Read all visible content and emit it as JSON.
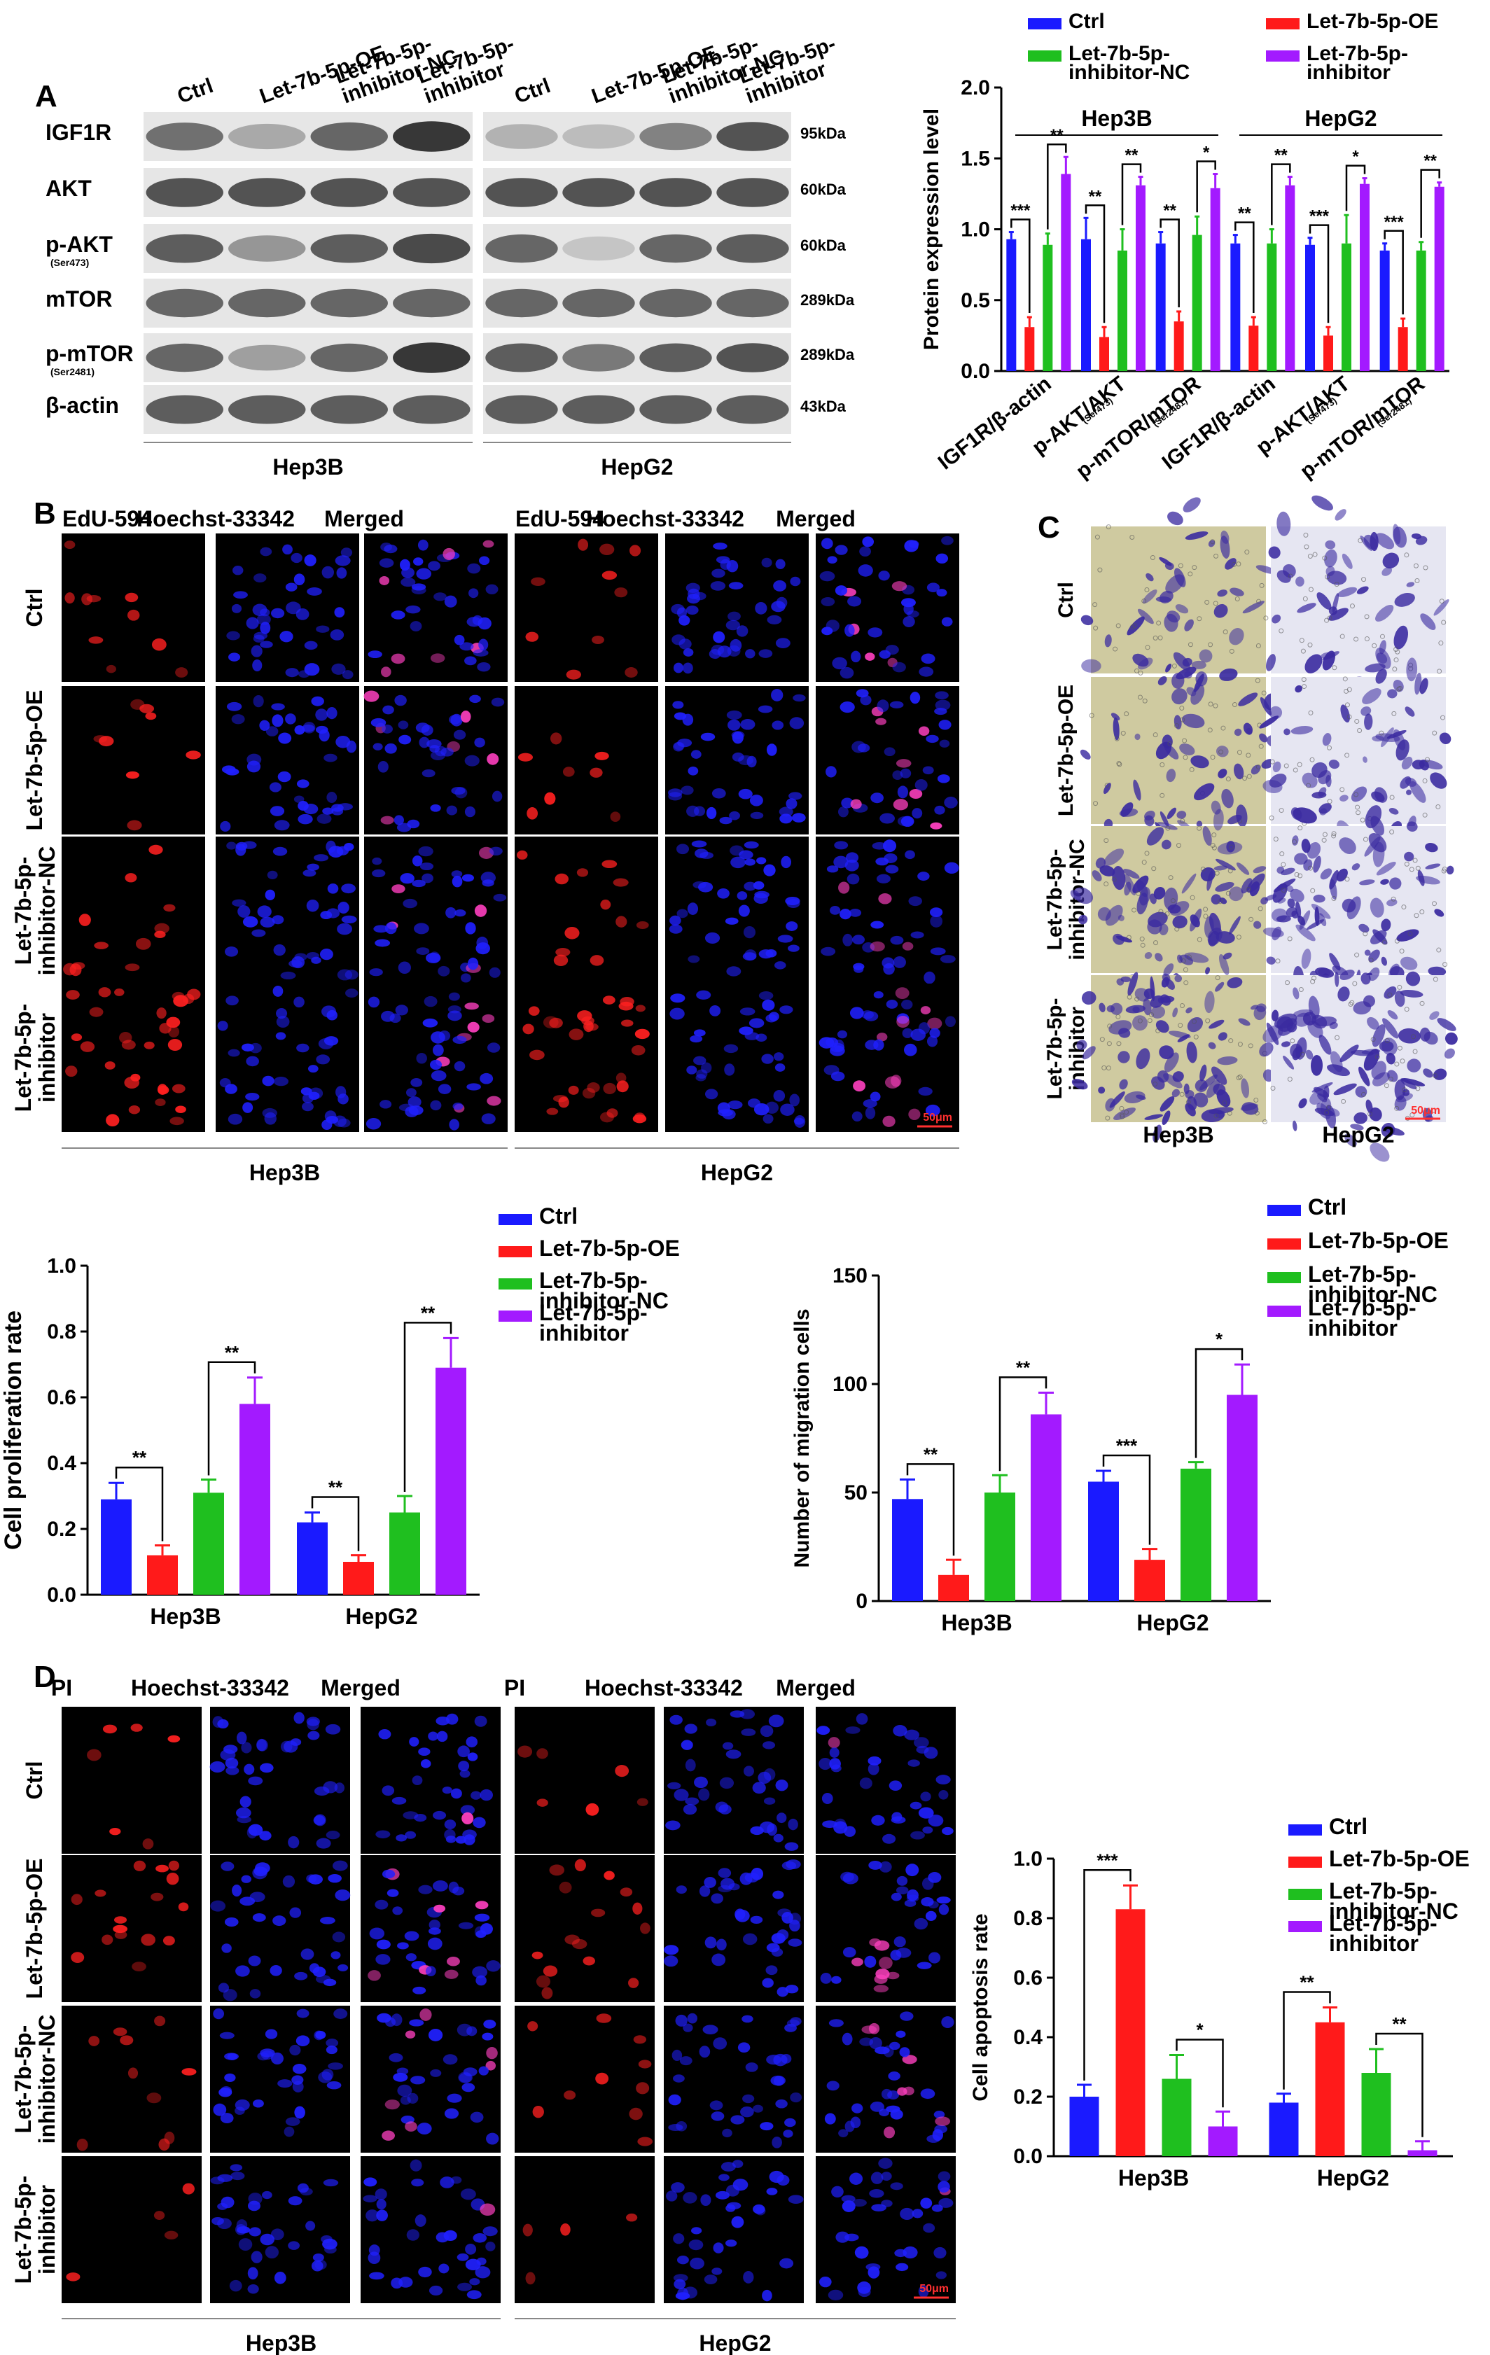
{
  "colors": {
    "Ctrl": "#1a1aff",
    "Let-7b-5p-OE": "#ff1a1a",
    "Let-7b-5p-inhibitor-NC": "#1fbf1f",
    "Let-7b-5p-inhibitor": "#a31aff",
    "fluor_red": "#ff2020",
    "fluor_blue": "#2020ff",
    "fluor_pink": "#ff40c0",
    "transwell_bg_hep3b": "#cfcaa0",
    "transwell_bg_hepg2": "#e6e6f2",
    "transwell_stain": "#3a2aa0"
  },
  "panel_letters": {
    "A": "A",
    "B": "B",
    "C": "C",
    "D": "D"
  },
  "western": {
    "lanes": [
      "Ctrl",
      "Let-7b-5p-OE",
      "Let-7b-5p-inhibitor-NC",
      "Let-7b-5p-inhibitor"
    ],
    "rows": [
      {
        "label": "IGF1R",
        "sub": "",
        "kda": "95kDa",
        "h3b": [
          0.65,
          0.35,
          0.7,
          0.95
        ],
        "hg2": [
          0.3,
          0.25,
          0.55,
          0.8
        ]
      },
      {
        "label": "AKT",
        "sub": "",
        "kda": "60kDa",
        "h3b": [
          0.8,
          0.8,
          0.8,
          0.8
        ],
        "hg2": [
          0.8,
          0.8,
          0.8,
          0.8
        ]
      },
      {
        "label": "p-AKT",
        "sub": "(Ser473)",
        "kda": "60kDa",
        "h3b": [
          0.75,
          0.45,
          0.75,
          0.85
        ],
        "hg2": [
          0.7,
          0.2,
          0.7,
          0.75
        ]
      },
      {
        "label": "mTOR",
        "sub": "",
        "kda": "289kDa",
        "h3b": [
          0.7,
          0.7,
          0.7,
          0.7
        ],
        "hg2": [
          0.7,
          0.7,
          0.7,
          0.7
        ]
      },
      {
        "label": "p-mTOR",
        "sub": "(Ser2481)",
        "kda": "289kDa",
        "h3b": [
          0.7,
          0.4,
          0.7,
          0.95
        ],
        "hg2": [
          0.75,
          0.6,
          0.75,
          0.8
        ]
      },
      {
        "label": "β-actin",
        "sub": "",
        "kda": "43kDa",
        "h3b": [
          0.75,
          0.75,
          0.75,
          0.75
        ],
        "hg2": [
          0.75,
          0.75,
          0.75,
          0.75
        ]
      }
    ],
    "cell_lines": [
      "Hep3B",
      "HepG2"
    ]
  },
  "microscopy": {
    "edu_headers": [
      "EdU-594",
      "Hoechst-33342",
      "Merged"
    ],
    "pi_headers": [
      "PI",
      "Hoechst-33342",
      "Merged"
    ],
    "row_labels": [
      "Ctrl",
      "Let-7b-5p-OE",
      "Let-7b-5p-inhibitor-NC",
      "Let-7b-5p-inhibitor"
    ],
    "cell_lines": [
      "Hep3B",
      "HepG2"
    ],
    "scale_bar": "50μm",
    "transwell_cell_lines": [
      "Hep3B",
      "HepG2"
    ]
  },
  "chart_data": [
    {
      "id": "protein",
      "type": "bar",
      "ylabel": "Protein expression level",
      "ylim": [
        0,
        2.0
      ],
      "yticks": [
        "0.0",
        "0.5",
        "1.0",
        "1.5",
        "2.0"
      ],
      "group_headers": [
        "Hep3B",
        "HepG2"
      ],
      "categories": [
        "IGF1R/β-actin",
        "p-AKT/AKT",
        "p-mTOR/mTOR",
        "IGF1R/β-actin",
        "p-AKT/AKT",
        "p-mTOR/mTOR"
      ],
      "category_subs": [
        "",
        "(Ser473)",
        "(Ser2481)",
        "",
        "(Ser473)",
        "(Ser2481)"
      ],
      "series": [
        {
          "name": "Ctrl",
          "values": [
            0.93,
            0.93,
            0.9,
            0.9,
            0.89,
            0.85
          ],
          "errors": [
            0.05,
            0.15,
            0.08,
            0.06,
            0.05,
            0.05
          ]
        },
        {
          "name": "Let-7b-5p-OE",
          "values": [
            0.31,
            0.24,
            0.35,
            0.32,
            0.25,
            0.31
          ],
          "errors": [
            0.07,
            0.07,
            0.07,
            0.06,
            0.06,
            0.06
          ]
        },
        {
          "name": "Let-7b-5p-inhibitor-NC",
          "values": [
            0.89,
            0.85,
            0.96,
            0.9,
            0.9,
            0.85
          ],
          "errors": [
            0.08,
            0.15,
            0.13,
            0.1,
            0.2,
            0.06
          ]
        },
        {
          "name": "Let-7b-5p-inhibitor",
          "values": [
            1.39,
            1.31,
            1.29,
            1.31,
            1.32,
            1.3
          ],
          "errors": [
            0.12,
            0.06,
            0.1,
            0.06,
            0.04,
            0.03
          ]
        }
      ],
      "significance": [
        {
          "cat": 0,
          "a": 0,
          "b": 1,
          "label": "***"
        },
        {
          "cat": 0,
          "a": 2,
          "b": 3,
          "label": "**"
        },
        {
          "cat": 1,
          "a": 0,
          "b": 1,
          "label": "**"
        },
        {
          "cat": 1,
          "a": 2,
          "b": 3,
          "label": "**"
        },
        {
          "cat": 2,
          "a": 0,
          "b": 1,
          "label": "**"
        },
        {
          "cat": 2,
          "a": 2,
          "b": 3,
          "label": "*"
        },
        {
          "cat": 3,
          "a": 0,
          "b": 1,
          "label": "**"
        },
        {
          "cat": 3,
          "a": 2,
          "b": 3,
          "label": "**"
        },
        {
          "cat": 4,
          "a": 0,
          "b": 1,
          "label": "***"
        },
        {
          "cat": 4,
          "a": 2,
          "b": 3,
          "label": "*"
        },
        {
          "cat": 5,
          "a": 0,
          "b": 1,
          "label": "***"
        },
        {
          "cat": 5,
          "a": 2,
          "b": 3,
          "label": "**"
        }
      ],
      "legend": [
        "Ctrl",
        "Let-7b-5p-OE",
        "Let-7b-5p-inhibitor-NC",
        "Let-7b-5p-inhibitor"
      ],
      "legend_placement": "top"
    },
    {
      "id": "proliferation",
      "type": "bar",
      "ylabel": "Cell proliferation rate",
      "ylim": [
        0,
        1.0
      ],
      "yticks": [
        "0.0",
        "0.2",
        "0.4",
        "0.6",
        "0.8",
        "1.0"
      ],
      "categories": [
        "Hep3B",
        "HepG2"
      ],
      "series": [
        {
          "name": "Ctrl",
          "values": [
            0.29,
            0.22
          ],
          "errors": [
            0.05,
            0.03
          ]
        },
        {
          "name": "Let-7b-5p-OE",
          "values": [
            0.12,
            0.1
          ],
          "errors": [
            0.03,
            0.02
          ]
        },
        {
          "name": "Let-7b-5p-inhibitor-NC",
          "values": [
            0.31,
            0.25
          ],
          "errors": [
            0.04,
            0.05
          ]
        },
        {
          "name": "Let-7b-5p-inhibitor",
          "values": [
            0.58,
            0.69
          ],
          "errors": [
            0.08,
            0.09
          ]
        }
      ],
      "significance": [
        {
          "cat": 0,
          "a": 0,
          "b": 1,
          "label": "**"
        },
        {
          "cat": 0,
          "a": 2,
          "b": 3,
          "label": "**"
        },
        {
          "cat": 1,
          "a": 0,
          "b": 1,
          "label": "**"
        },
        {
          "cat": 1,
          "a": 2,
          "b": 3,
          "label": "**"
        }
      ],
      "legend": [
        "Ctrl",
        "Let-7b-5p-OE",
        "Let-7b-5p-inhibitor-NC",
        "Let-7b-5p-inhibitor"
      ],
      "legend_placement": "top-right"
    },
    {
      "id": "migration",
      "type": "bar",
      "ylabel": "Number of migration cells",
      "ylim": [
        0,
        150
      ],
      "yticks": [
        "0",
        "50",
        "100",
        "150"
      ],
      "categories": [
        "Hep3B",
        "HepG2"
      ],
      "series": [
        {
          "name": "Ctrl",
          "values": [
            47,
            55
          ],
          "errors": [
            9,
            5
          ]
        },
        {
          "name": "Let-7b-5p-OE",
          "values": [
            12,
            19
          ],
          "errors": [
            7,
            5
          ]
        },
        {
          "name": "Let-7b-5p-inhibitor-NC",
          "values": [
            50,
            61
          ],
          "errors": [
            8,
            3
          ]
        },
        {
          "name": "Let-7b-5p-inhibitor",
          "values": [
            86,
            95
          ],
          "errors": [
            10,
            14
          ]
        }
      ],
      "significance": [
        {
          "cat": 0,
          "a": 0,
          "b": 1,
          "label": "**"
        },
        {
          "cat": 0,
          "a": 2,
          "b": 3,
          "label": "**"
        },
        {
          "cat": 1,
          "a": 0,
          "b": 1,
          "label": "***"
        },
        {
          "cat": 1,
          "a": 2,
          "b": 3,
          "label": "*"
        }
      ],
      "legend": [
        "Ctrl",
        "Let-7b-5p-OE",
        "Let-7b-5p-inhibitor-NC",
        "Let-7b-5p-inhibitor"
      ],
      "legend_placement": "top-right"
    },
    {
      "id": "apoptosis",
      "type": "bar",
      "ylabel": "Cell apoptosis rate",
      "ylim": [
        0,
        1.0
      ],
      "yticks": [
        "0.0",
        "0.2",
        "0.4",
        "0.6",
        "0.8",
        "1.0"
      ],
      "categories": [
        "Hep3B",
        "HepG2"
      ],
      "series": [
        {
          "name": "Ctrl",
          "values": [
            0.2,
            0.18
          ],
          "errors": [
            0.04,
            0.03
          ]
        },
        {
          "name": "Let-7b-5p-OE",
          "values": [
            0.83,
            0.45
          ],
          "errors": [
            0.08,
            0.05
          ]
        },
        {
          "name": "Let-7b-5p-inhibitor-NC",
          "values": [
            0.26,
            0.28
          ],
          "errors": [
            0.08,
            0.08
          ]
        },
        {
          "name": "Let-7b-5p-inhibitor",
          "values": [
            0.1,
            0.02
          ],
          "errors": [
            0.05,
            0.03
          ]
        }
      ],
      "significance": [
        {
          "cat": 0,
          "a": 0,
          "b": 1,
          "label": "***"
        },
        {
          "cat": 0,
          "a": 2,
          "b": 3,
          "label": "*"
        },
        {
          "cat": 1,
          "a": 0,
          "b": 1,
          "label": "**"
        },
        {
          "cat": 1,
          "a": 2,
          "b": 3,
          "label": "**"
        }
      ],
      "legend": [
        "Ctrl",
        "Let-7b-5p-OE",
        "Let-7b-5p-inhibitor-NC",
        "Let-7b-5p-inhibitor"
      ],
      "legend_placement": "top-right"
    }
  ]
}
